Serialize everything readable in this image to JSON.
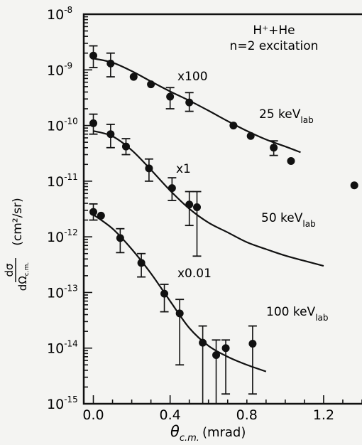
{
  "chart_data": {
    "type": "scatter",
    "title": "",
    "annotation": {
      "line1": "H⁺+He",
      "line2": "n=2 excitation"
    },
    "xlabel": {
      "symbol": "θ",
      "sub": "c.m.",
      "unit": "(mrad)"
    },
    "ylabel": {
      "num": "dσ",
      "den": "dΩ",
      "den_sub": "c.m.",
      "unit": "(cm²/sr)"
    },
    "xlim": [
      -0.05,
      1.4
    ],
    "ylim_exp": [
      -15,
      -8
    ],
    "y_scale": "log",
    "x_ticks": [
      {
        "value": 0.0,
        "label": "0.0"
      },
      {
        "value": 0.4,
        "label": "0.4"
      },
      {
        "value": 0.8,
        "label": "0.8"
      },
      {
        "value": 1.2,
        "label": "1.2"
      }
    ],
    "y_ticks": [
      {
        "exp": -8,
        "base": "10",
        "sup": "-8"
      },
      {
        "exp": -9,
        "base": "10",
        "sup": "-9"
      },
      {
        "exp": -10,
        "base": "10",
        "sup": "-10"
      },
      {
        "exp": -11,
        "base": "10",
        "sup": "-11"
      },
      {
        "exp": -12,
        "base": "10",
        "sup": "-12"
      },
      {
        "exp": -13,
        "base": "10",
        "sup": "-13"
      },
      {
        "exp": -14,
        "base": "10",
        "sup": "-14"
      },
      {
        "exp": -15,
        "base": "10",
        "sup": "-15"
      }
    ],
    "series": [
      {
        "energy": "25 keV",
        "energy_sub": "lab",
        "scale": "x100",
        "points": [
          {
            "x": 0.0,
            "y": 1.8e-09,
            "err_lo": 1.1e-09,
            "err_hi": 2.7e-09
          },
          {
            "x": 0.09,
            "y": 1.3e-09,
            "err_lo": 7.5e-10,
            "err_hi": 2e-09
          },
          {
            "x": 0.21,
            "y": 7.5e-10
          },
          {
            "x": 0.3,
            "y": 5.5e-10
          },
          {
            "x": 0.4,
            "y": 3.3e-10,
            "err_lo": 2e-10,
            "err_hi": 4.8e-10
          },
          {
            "x": 0.5,
            "y": 2.6e-10,
            "err_lo": 1.8e-10,
            "err_hi": 3.9e-10
          },
          {
            "x": 0.73,
            "y": 1e-10
          },
          {
            "x": 0.82,
            "y": 6.5e-11
          },
          {
            "x": 0.94,
            "y": 4e-11,
            "err_lo": 2.9e-11,
            "err_hi": 5.3e-11
          },
          {
            "x": 1.03,
            "y": 2.3e-11
          },
          {
            "x": 1.36,
            "y": 8.4e-12
          }
        ],
        "curve": [
          [
            0.0,
            1.6e-09
          ],
          [
            0.1,
            1.35e-09
          ],
          [
            0.2,
            9.5e-10
          ],
          [
            0.3,
            6.2e-10
          ],
          [
            0.4,
            4.1e-10
          ],
          [
            0.5,
            2.8e-10
          ],
          [
            0.6,
            1.85e-10
          ],
          [
            0.7,
            1.2e-10
          ],
          [
            0.8,
            8e-11
          ],
          [
            0.9,
            5.6e-11
          ],
          [
            1.0,
            4.2e-11
          ],
          [
            1.08,
            3.3e-11
          ]
        ]
      },
      {
        "energy": "50 keV",
        "energy_sub": "lab",
        "scale": "x1",
        "points": [
          {
            "x": 0.0,
            "y": 1.1e-10,
            "err_lo": 7e-11,
            "err_hi": 1.6e-10
          },
          {
            "x": 0.09,
            "y": 7e-11,
            "err_lo": 4e-11,
            "err_hi": 1.05e-10
          },
          {
            "x": 0.17,
            "y": 4.2e-11,
            "err_lo": 3e-11,
            "err_hi": 5.8e-11
          },
          {
            "x": 0.29,
            "y": 1.7e-11,
            "err_lo": 1e-11,
            "err_hi": 2.5e-11
          },
          {
            "x": 0.41,
            "y": 7.5e-12,
            "err_lo": 4.5e-12,
            "err_hi": 1.15e-11
          },
          {
            "x": 0.5,
            "y": 3.8e-12,
            "err_lo": 1.6e-12,
            "err_hi": 6.5e-12
          },
          {
            "x": 0.54,
            "y": 3.4e-12,
            "err_lo": 4.5e-13,
            "err_hi": 6.5e-12
          }
        ],
        "curve": [
          [
            0.0,
            8e-11
          ],
          [
            0.1,
            6.4e-11
          ],
          [
            0.2,
            3.6e-11
          ],
          [
            0.3,
            1.6e-11
          ],
          [
            0.4,
            6.8e-12
          ],
          [
            0.5,
            3.2e-12
          ],
          [
            0.6,
            1.8e-12
          ],
          [
            0.7,
            1.2e-12
          ],
          [
            0.8,
            8e-13
          ],
          [
            0.9,
            6e-13
          ],
          [
            1.0,
            4.6e-13
          ],
          [
            1.1,
            3.7e-13
          ],
          [
            1.2,
            3e-13
          ]
        ]
      },
      {
        "energy": "100 keV",
        "energy_sub": "lab",
        "scale": "x0.01",
        "points": [
          {
            "x": 0.0,
            "y": 2.8e-12,
            "err_lo": 2e-12,
            "err_hi": 3.9e-12
          },
          {
            "x": 0.04,
            "y": 2.4e-12
          },
          {
            "x": 0.14,
            "y": 9.5e-13,
            "err_lo": 5.2e-13,
            "err_hi": 1.4e-12
          },
          {
            "x": 0.25,
            "y": 3.4e-13,
            "err_lo": 1.9e-13,
            "err_hi": 5e-13
          },
          {
            "x": 0.37,
            "y": 9.5e-14,
            "err_lo": 4.5e-14,
            "err_hi": 1.4e-13
          },
          {
            "x": 0.45,
            "y": 4.2e-14,
            "err_lo": 5e-15,
            "err_hi": 7.5e-14
          },
          {
            "x": 0.57,
            "y": 1.25e-14,
            "err_lo": 1e-15,
            "err_hi": 2.5e-14
          },
          {
            "x": 0.64,
            "y": 7.5e-15,
            "err_lo": 1e-15,
            "err_hi": 1.4e-14
          },
          {
            "x": 0.69,
            "y": 1e-14,
            "err_lo": 1.5e-15,
            "err_hi": 1.4e-14
          },
          {
            "x": 0.83,
            "y": 1.2e-14,
            "err_lo": 1.5e-15,
            "err_hi": 2.5e-14
          }
        ],
        "curve": [
          [
            0.0,
            2.5e-12
          ],
          [
            0.1,
            1.4e-12
          ],
          [
            0.2,
            6e-13
          ],
          [
            0.3,
            2.2e-13
          ],
          [
            0.4,
            7e-14
          ],
          [
            0.5,
            2.3e-14
          ],
          [
            0.6,
            1.1e-14
          ],
          [
            0.7,
            7e-15
          ],
          [
            0.8,
            5e-15
          ],
          [
            0.9,
            3.8e-15
          ]
        ]
      }
    ]
  }
}
